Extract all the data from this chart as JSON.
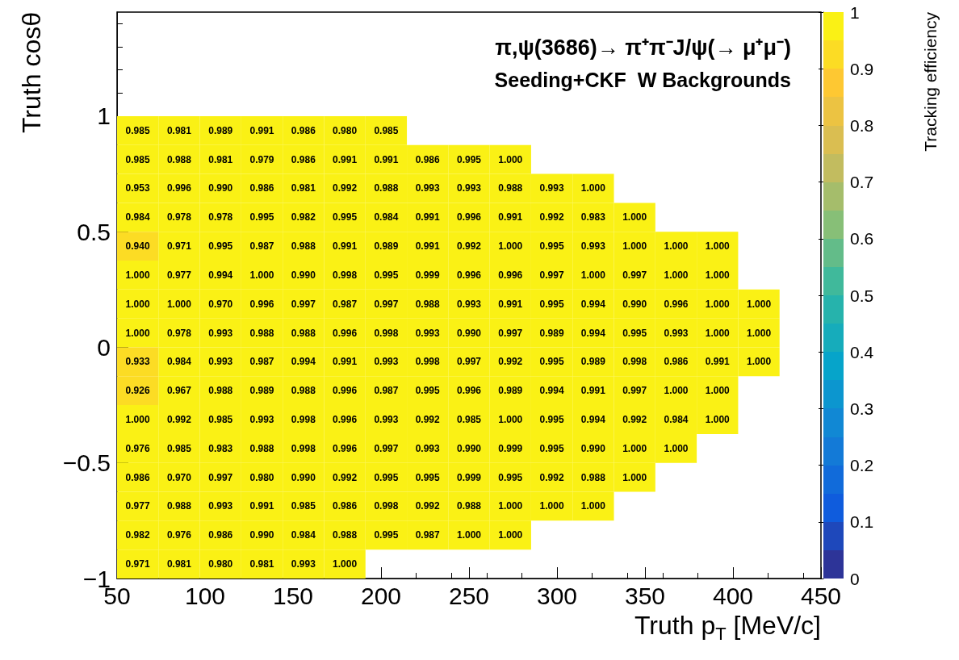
{
  "chart_data": {
    "type": "heatmap",
    "title": "π,ψ(3686)→ π⁺π⁻J/ψ(→ μ⁺μ⁻)",
    "subtitle": "Seeding+CKF  W Backgrounds",
    "xlabel": "Truth p$_{T}$ [MeV/c]",
    "ylabel": "Truth cosθ",
    "clabel": "Tracking efficiency",
    "x": [
      61.76,
      85.29,
      108.82,
      132.35,
      155.88,
      179.41,
      202.94,
      226.47,
      250,
      273.53,
      297.06,
      320.59,
      344.12,
      367.65,
      391.18,
      414.71
    ],
    "y": [
      0.9375,
      0.8125,
      0.6875,
      0.5625,
      0.4375,
      0.3125,
      0.1875,
      0.0625,
      -0.0625,
      -0.1875,
      -0.3125,
      -0.4375,
      -0.5625,
      -0.6875,
      -0.8125,
      -0.9375
    ],
    "cells": [
      [
        0.985,
        0.981,
        0.989,
        0.991,
        0.986,
        0.98,
        0.985,
        null,
        null,
        null,
        null,
        null,
        null,
        null,
        null,
        null
      ],
      [
        0.985,
        0.988,
        0.981,
        0.979,
        0.986,
        0.991,
        0.991,
        0.986,
        0.995,
        1.0,
        null,
        null,
        null,
        null,
        null,
        null
      ],
      [
        0.953,
        0.996,
        0.99,
        0.986,
        0.981,
        0.992,
        0.988,
        0.993,
        0.993,
        0.988,
        0.993,
        1.0,
        null,
        null,
        null,
        null
      ],
      [
        0.984,
        0.978,
        0.978,
        0.995,
        0.982,
        0.995,
        0.984,
        0.991,
        0.996,
        0.991,
        0.992,
        0.983,
        1.0,
        null,
        null,
        null
      ],
      [
        0.94,
        0.971,
        0.995,
        0.987,
        0.988,
        0.991,
        0.989,
        0.991,
        0.992,
        1.0,
        0.995,
        0.993,
        1.0,
        1.0,
        1.0,
        null
      ],
      [
        1.0,
        0.977,
        0.994,
        1.0,
        0.99,
        0.998,
        0.995,
        0.999,
        0.996,
        0.996,
        0.997,
        1.0,
        0.997,
        1.0,
        1.0,
        null
      ],
      [
        1.0,
        1.0,
        0.97,
        0.996,
        0.997,
        0.987,
        0.997,
        0.988,
        0.993,
        0.991,
        0.995,
        0.994,
        0.99,
        0.996,
        1.0,
        1.0
      ],
      [
        1.0,
        0.978,
        0.993,
        0.988,
        0.988,
        0.996,
        0.998,
        0.993,
        0.99,
        0.997,
        0.989,
        0.994,
        0.995,
        0.993,
        1.0,
        1.0
      ],
      [
        0.933,
        0.984,
        0.993,
        0.987,
        0.994,
        0.991,
        0.993,
        0.998,
        0.997,
        0.992,
        0.995,
        0.989,
        0.998,
        0.986,
        0.991,
        1.0
      ],
      [
        0.926,
        0.967,
        0.988,
        0.989,
        0.988,
        0.996,
        0.987,
        0.995,
        0.996,
        0.989,
        0.994,
        0.991,
        0.997,
        1.0,
        1.0,
        null
      ],
      [
        1.0,
        0.992,
        0.985,
        0.993,
        0.998,
        0.996,
        0.993,
        0.992,
        0.985,
        1.0,
        0.995,
        0.994,
        0.992,
        0.984,
        1.0,
        null
      ],
      [
        0.976,
        0.985,
        0.983,
        0.988,
        0.998,
        0.996,
        0.997,
        0.993,
        0.99,
        0.999,
        0.995,
        0.99,
        1.0,
        1.0,
        null,
        null
      ],
      [
        0.986,
        0.97,
        0.997,
        0.98,
        0.99,
        0.992,
        0.995,
        0.995,
        0.999,
        0.995,
        0.992,
        0.988,
        1.0,
        null,
        null,
        null
      ],
      [
        0.977,
        0.988,
        0.993,
        0.991,
        0.985,
        0.986,
        0.998,
        0.992,
        0.988,
        1.0,
        1.0,
        1.0,
        null,
        null,
        null,
        null
      ],
      [
        0.982,
        0.976,
        0.986,
        0.99,
        0.984,
        0.988,
        0.995,
        0.987,
        1.0,
        1.0,
        null,
        null,
        null,
        null,
        null,
        null
      ],
      [
        0.971,
        0.981,
        0.98,
        0.981,
        0.993,
        1.0,
        null,
        null,
        null,
        null,
        null,
        null,
        null,
        null,
        null,
        null
      ]
    ],
    "cell_labels": [
      [
        "0.985",
        "0.981",
        "0.989",
        "0.991",
        "0.986",
        "0.980",
        "0.985",
        null,
        null,
        null,
        null,
        null,
        null,
        null,
        null,
        null
      ],
      [
        "0.985",
        "0.988",
        "0.981",
        "0.979",
        "0.986",
        "0.991",
        "0.991",
        "0.986",
        "0.995",
        "1.000",
        null,
        null,
        null,
        null,
        null,
        null
      ],
      [
        "0.953",
        "0.996",
        "0.990",
        "0.986",
        "0.981",
        "0.992",
        "0.988",
        "0.993",
        "0.993",
        "0.988",
        "0.993",
        "1.000",
        null,
        null,
        null,
        null
      ],
      [
        "0.984",
        "0.978",
        "0.978",
        "0.995",
        "0.982",
        "0.995",
        "0.984",
        "0.991",
        "0.996",
        "0.991",
        "0.992",
        "0.983",
        "1.000",
        null,
        null,
        null
      ],
      [
        "0.940",
        "0.971",
        "0.995",
        "0.987",
        "0.988",
        "0.991",
        "0.989",
        "0.991",
        "0.992",
        "1.000",
        "0.995",
        "0.993",
        "1.000",
        "1.000",
        "1.000",
        null
      ],
      [
        "1.000",
        "0.977",
        "0.994",
        "1.000",
        "0.990",
        "0.998",
        "0.995",
        "0.999",
        "0.996",
        "0.996",
        "0.997",
        "1.000",
        "0.997",
        "1.000",
        "1.000",
        null
      ],
      [
        "1.000",
        "1.000",
        "0.970",
        "0.996",
        "0.997",
        "0.987",
        "0.997",
        "0.988",
        "0.993",
        "0.991",
        "0.995",
        "0.994",
        "0.990",
        "0.996",
        "1.000",
        "1.000"
      ],
      [
        "1.000",
        "0.978",
        "0.993",
        "0.988",
        "0.988",
        "0.996",
        "0.998",
        "0.993",
        "0.990",
        "0.997",
        "0.989",
        "0.994",
        "0.995",
        "0.993",
        "1.000",
        "1.000"
      ],
      [
        "0.933",
        "0.984",
        "0.993",
        "0.987",
        "0.994",
        "0.991",
        "0.993",
        "0.998",
        "0.997",
        "0.992",
        "0.995",
        "0.989",
        "0.998",
        "0.986",
        "0.991",
        "1.000"
      ],
      [
        "0.926",
        "0.967",
        "0.988",
        "0.989",
        "0.988",
        "0.996",
        "0.987",
        "0.995",
        "0.996",
        "0.989",
        "0.994",
        "0.991",
        "0.997",
        "1.000",
        "1.000",
        null
      ],
      [
        "1.000",
        "0.992",
        "0.985",
        "0.993",
        "0.998",
        "0.996",
        "0.993",
        "0.992",
        "0.985",
        "1.000",
        "0.995",
        "0.994",
        "0.992",
        "0.984",
        "1.000",
        null
      ],
      [
        "0.976",
        "0.985",
        "0.983",
        "0.988",
        "0.998",
        "0.996",
        "0.997",
        "0.993",
        "0.990",
        "0.999",
        "0.995",
        "0.990",
        "1.000",
        "1.000",
        null,
        null
      ],
      [
        "0.986",
        "0.970",
        "0.997",
        "0.980",
        "0.990",
        "0.992",
        "0.995",
        "0.995",
        "0.999",
        "0.995",
        "0.992",
        "0.988",
        "1.000",
        null,
        null,
        null
      ],
      [
        "0.977",
        "0.988",
        "0.993",
        "0.991",
        "0.985",
        "0.986",
        "0.998",
        "0.992",
        "0.988",
        "1.000",
        "1.000",
        "1.000",
        null,
        null,
        null,
        null
      ],
      [
        "0.982",
        "0.976",
        "0.986",
        "0.990",
        "0.984",
        "0.988",
        "0.995",
        "0.987",
        "1.000",
        "1.000",
        null,
        null,
        null,
        null,
        null,
        null
      ],
      [
        "0.971",
        "0.981",
        "0.980",
        "0.981",
        "0.993",
        "1.000",
        null,
        null,
        null,
        null,
        null,
        null,
        null,
        null,
        null,
        null
      ]
    ],
    "xlim": [
      50,
      450
    ],
    "xticks": [
      50,
      100,
      150,
      200,
      250,
      300,
      350,
      400,
      450
    ],
    "ylim": [
      -1,
      1.45
    ],
    "yticks": [
      {
        "value": -1,
        "label": "−1"
      },
      {
        "value": -0.5,
        "label": "−0.5"
      },
      0,
      0.5,
      1
    ],
    "clim": [
      0,
      1
    ],
    "cticks": [
      0,
      0.1,
      0.2,
      0.3,
      0.4,
      0.5,
      0.6,
      0.7,
      0.8,
      0.9,
      1
    ]
  }
}
